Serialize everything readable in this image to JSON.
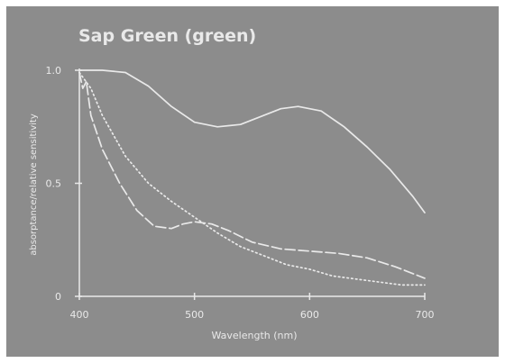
{
  "chart_data": {
    "type": "line",
    "title": "Sap Green (green)",
    "xlabel": "Wavelength (nm)",
    "ylabel": "absorptance/relative sensitivity",
    "xlim": [
      400,
      700
    ],
    "ylim": [
      0,
      1.0
    ],
    "x_ticks": [
      400,
      500,
      600,
      700
    ],
    "x_tick_labels": [
      "400",
      "500",
      "600",
      "700"
    ],
    "y_ticks": [
      0,
      0.5,
      1.0
    ],
    "y_tick_labels": [
      "0",
      "0.5",
      "1.0"
    ],
    "grid": false,
    "series": [
      {
        "style": "solid",
        "points": [
          [
            400,
            1.0
          ],
          [
            420,
            1.0
          ],
          [
            440,
            0.99
          ],
          [
            460,
            0.93
          ],
          [
            480,
            0.84
          ],
          [
            500,
            0.77
          ],
          [
            520,
            0.75
          ],
          [
            540,
            0.76
          ],
          [
            560,
            0.8
          ],
          [
            575,
            0.83
          ],
          [
            590,
            0.84
          ],
          [
            610,
            0.82
          ],
          [
            630,
            0.75
          ],
          [
            650,
            0.66
          ],
          [
            670,
            0.56
          ],
          [
            690,
            0.44
          ],
          [
            700,
            0.37
          ]
        ]
      },
      {
        "style": "dashed",
        "points": [
          [
            400,
            0.99
          ],
          [
            403,
            0.92
          ],
          [
            406,
            0.95
          ],
          [
            410,
            0.8
          ],
          [
            420,
            0.65
          ],
          [
            435,
            0.5
          ],
          [
            450,
            0.38
          ],
          [
            465,
            0.31
          ],
          [
            480,
            0.3
          ],
          [
            490,
            0.32
          ],
          [
            500,
            0.33
          ],
          [
            515,
            0.32
          ],
          [
            530,
            0.29
          ],
          [
            550,
            0.24
          ],
          [
            575,
            0.21
          ],
          [
            600,
            0.2
          ],
          [
            625,
            0.19
          ],
          [
            650,
            0.17
          ],
          [
            675,
            0.13
          ],
          [
            700,
            0.08
          ]
        ]
      },
      {
        "style": "dotted",
        "points": [
          [
            400,
            0.99
          ],
          [
            410,
            0.92
          ],
          [
            420,
            0.8
          ],
          [
            440,
            0.62
          ],
          [
            460,
            0.5
          ],
          [
            480,
            0.42
          ],
          [
            500,
            0.35
          ],
          [
            520,
            0.28
          ],
          [
            540,
            0.22
          ],
          [
            560,
            0.18
          ],
          [
            580,
            0.14
          ],
          [
            600,
            0.12
          ],
          [
            620,
            0.09
          ],
          [
            650,
            0.07
          ],
          [
            680,
            0.05
          ],
          [
            700,
            0.05
          ]
        ]
      }
    ],
    "colors": {
      "panel_bg": "#8c8c8c",
      "foreground": "#e9e9e9"
    }
  }
}
